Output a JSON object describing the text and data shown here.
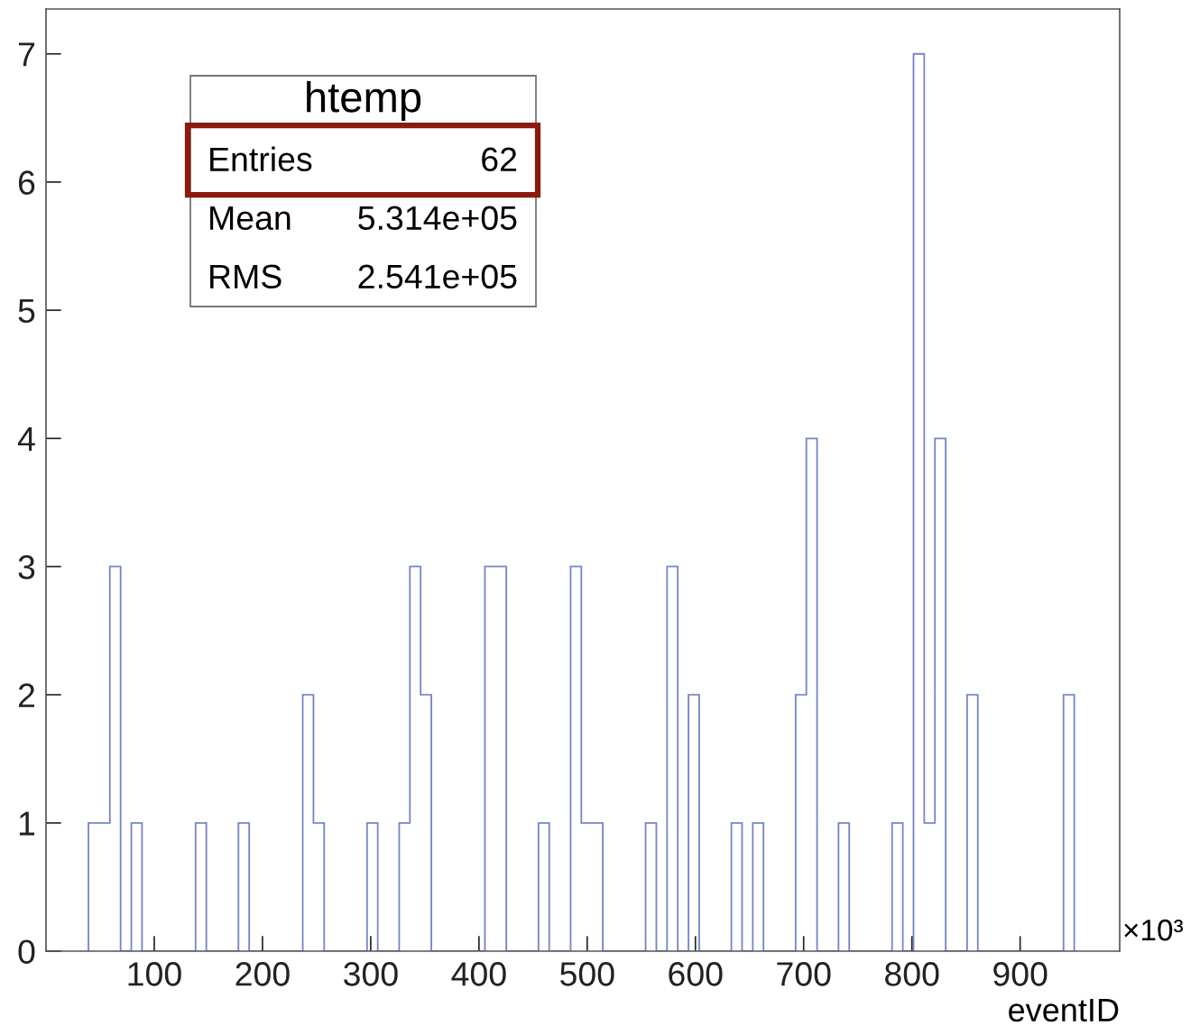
{
  "chart_data": {
    "type": "histogram",
    "xlabel": "eventID",
    "color": "#7585c4",
    "bins": [
      39.2,
      49.1,
      59.0,
      68.9,
      78.8,
      88.7,
      98.6,
      108.5,
      118.4,
      128.3,
      138.2,
      148.1,
      158.0,
      167.9,
      177.8,
      187.7,
      197.6,
      207.5,
      217.4,
      227.3,
      237.2,
      247.1,
      257.0,
      266.9,
      276.8,
      286.7,
      296.6,
      306.5,
      316.4,
      326.3,
      336.2,
      346.1,
      356.0,
      365.9,
      375.8,
      385.7,
      395.6,
      405.5,
      415.4,
      425.3,
      435.2,
      445.1,
      455.0,
      464.9,
      474.8,
      484.7,
      494.6,
      504.5,
      514.4,
      524.3,
      534.2,
      544.1,
      554.0,
      563.9,
      573.8,
      583.7,
      593.6,
      603.5,
      613.4,
      623.3,
      633.2,
      643.1,
      653.0,
      662.9,
      672.8,
      682.7,
      692.6,
      702.5,
      712.4,
      722.3,
      732.2,
      742.1,
      752.0,
      761.9,
      771.8,
      781.7,
      791.6,
      801.5,
      811.4,
      821.3,
      831.2,
      841.1,
      851.0,
      860.9,
      870.8,
      880.7,
      890.6,
      900.5,
      910.4,
      920.3,
      930.2,
      940.1,
      950.0
    ],
    "values": [
      1,
      1,
      3,
      0,
      1,
      0,
      0,
      0,
      0,
      0,
      1,
      0,
      0,
      0,
      1,
      0,
      0,
      0,
      0,
      0,
      2,
      1,
      0,
      0,
      0,
      0,
      1,
      0,
      0,
      1,
      3,
      2,
      0,
      0,
      0,
      0,
      0,
      3,
      3,
      0,
      0,
      0,
      1,
      0,
      0,
      3,
      1,
      1,
      0,
      0,
      0,
      0,
      1,
      0,
      3,
      0,
      2,
      0,
      0,
      0,
      1,
      0,
      1,
      0,
      0,
      0,
      2,
      4,
      0,
      0,
      1,
      0,
      0,
      0,
      0,
      1,
      0,
      7,
      1,
      4,
      0,
      0,
      2,
      0,
      0,
      0,
      0,
      0,
      0,
      0,
      0,
      2
    ],
    "xlim": [
      0,
      992
    ],
    "ylim": [
      0,
      7.35
    ],
    "xticks": [
      100,
      200,
      300,
      400,
      500,
      600,
      700,
      800,
      900
    ],
    "yticks": [
      0,
      1,
      2,
      3,
      4,
      5,
      6,
      7
    ],
    "annotations": [
      "htemp",
      "Entries",
      "62",
      "Mean",
      "5.314e+05",
      "RMS",
      "2.541e+05",
      "×10³"
    ]
  }
}
